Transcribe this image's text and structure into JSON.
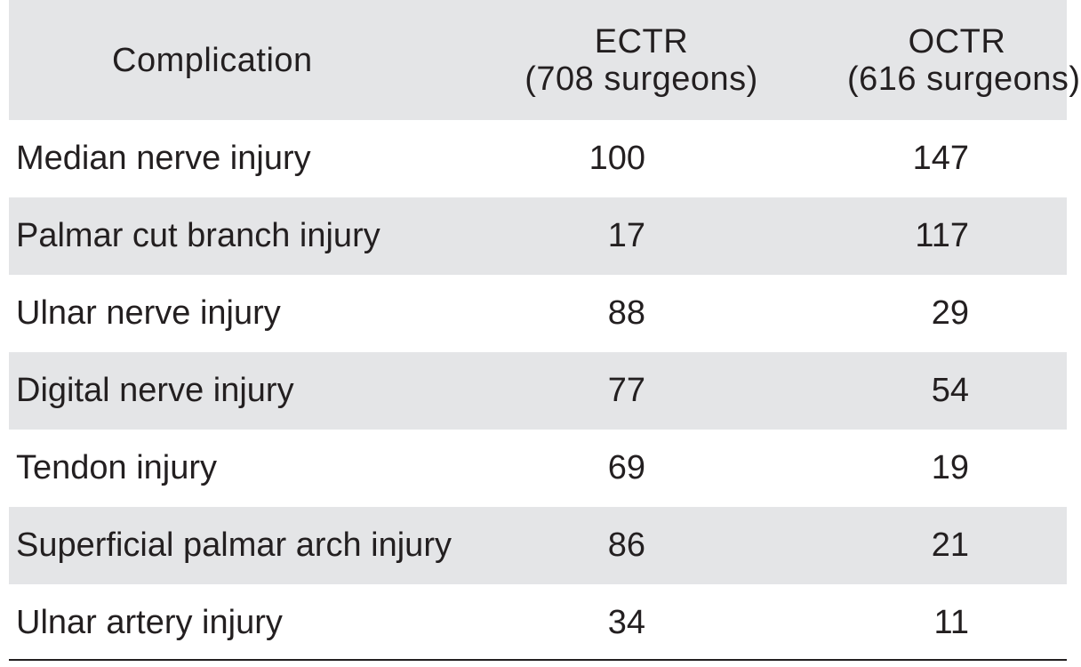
{
  "table": {
    "header": {
      "complication": "Complication",
      "ectr_line1": "ECTR",
      "ectr_line2": "(708 surgeons)",
      "octr_line1": "OCTR",
      "octr_line2": "(616 surgeons)"
    },
    "rows": [
      {
        "complication": "Median nerve injury",
        "ectr": "100",
        "octr": "147"
      },
      {
        "complication": "Palmar cut branch injury",
        "ectr": "17",
        "octr": "117"
      },
      {
        "complication": "Ulnar nerve injury",
        "ectr": "88",
        "octr": "29"
      },
      {
        "complication": "Digital nerve injury",
        "ectr": "77",
        "octr": "54"
      },
      {
        "complication": "Tendon injury",
        "ectr": "69",
        "octr": "19"
      },
      {
        "complication": "Superficial palmar arch injury",
        "ectr": "86",
        "octr": "21"
      },
      {
        "complication": "Ulnar artery injury",
        "ectr": "34",
        "octr": "11"
      }
    ]
  },
  "colors": {
    "header_bg": "#e4e5e7",
    "stripe_bg": "#e4e5e7",
    "text": "#231f20"
  }
}
